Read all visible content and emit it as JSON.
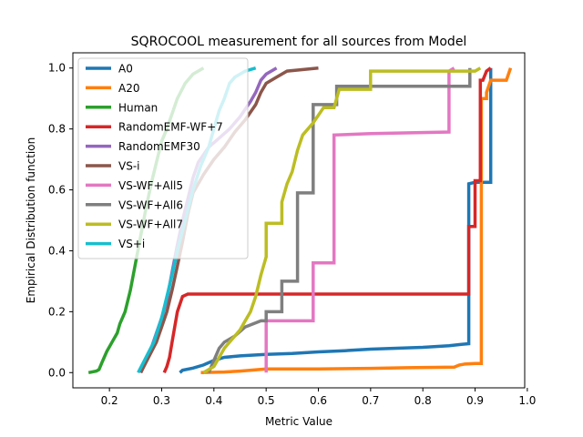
{
  "chart_data": {
    "type": "line",
    "title": "SQROCOOL measurement for all sources from Model",
    "xlabel": "Metric Value",
    "ylabel": "Empirical Distribution function",
    "xlim": [
      0.13,
      0.995
    ],
    "ylim": [
      -0.05,
      1.05
    ],
    "xticks": [
      "0.2",
      "0.3",
      "0.4",
      "0.5",
      "0.6",
      "0.7",
      "0.8",
      "0.9",
      "1.0"
    ],
    "yticks": [
      "0.0",
      "0.2",
      "0.4",
      "0.6",
      "0.8",
      "1.0"
    ],
    "grid": false,
    "legend_position": "upper-left",
    "series": [
      {
        "name": "A0",
        "color": "#1f77b4",
        "alpha": 1.0,
        "points": [
          [
            0.335,
            0.0
          ],
          [
            0.34,
            0.008
          ],
          [
            0.36,
            0.015
          ],
          [
            0.38,
            0.025
          ],
          [
            0.4,
            0.04
          ],
          [
            0.42,
            0.05
          ],
          [
            0.45,
            0.055
          ],
          [
            0.5,
            0.06
          ],
          [
            0.55,
            0.063
          ],
          [
            0.6,
            0.068
          ],
          [
            0.65,
            0.072
          ],
          [
            0.7,
            0.077
          ],
          [
            0.75,
            0.08
          ],
          [
            0.8,
            0.083
          ],
          [
            0.85,
            0.088
          ],
          [
            0.87,
            0.092
          ],
          [
            0.888,
            0.095
          ],
          [
            0.888,
            0.62
          ],
          [
            0.9,
            0.625
          ],
          [
            0.93,
            0.625
          ],
          [
            0.93,
            1.0
          ]
        ]
      },
      {
        "name": "A20",
        "color": "#ff7f0e",
        "alpha": 1.0,
        "points": [
          [
            0.375,
            0.0
          ],
          [
            0.42,
            0.002
          ],
          [
            0.45,
            0.005
          ],
          [
            0.5,
            0.012
          ],
          [
            0.6,
            0.012
          ],
          [
            0.7,
            0.014
          ],
          [
            0.77,
            0.016
          ],
          [
            0.86,
            0.018
          ],
          [
            0.87,
            0.025
          ],
          [
            0.88,
            0.028
          ],
          [
            0.9,
            0.03
          ],
          [
            0.912,
            0.03
          ],
          [
            0.912,
            0.9
          ],
          [
            0.922,
            0.9
          ],
          [
            0.922,
            0.92
          ],
          [
            0.93,
            0.96
          ],
          [
            0.96,
            0.96
          ],
          [
            0.968,
            1.0
          ]
        ]
      },
      {
        "name": "Human",
        "color": "#2ca02c",
        "alpha": 1.0,
        "points": [
          [
            0.16,
            0.0
          ],
          [
            0.175,
            0.005
          ],
          [
            0.18,
            0.01
          ],
          [
            0.185,
            0.03
          ],
          [
            0.19,
            0.05
          ],
          [
            0.195,
            0.07
          ],
          [
            0.205,
            0.1
          ],
          [
            0.215,
            0.13
          ],
          [
            0.22,
            0.16
          ],
          [
            0.23,
            0.2
          ],
          [
            0.24,
            0.27
          ],
          [
            0.25,
            0.36
          ],
          [
            0.26,
            0.45
          ],
          [
            0.27,
            0.54
          ],
          [
            0.28,
            0.62
          ],
          [
            0.29,
            0.69
          ],
          [
            0.3,
            0.76
          ],
          [
            0.31,
            0.8
          ],
          [
            0.32,
            0.85
          ],
          [
            0.33,
            0.9
          ],
          [
            0.345,
            0.95
          ],
          [
            0.36,
            0.98
          ],
          [
            0.38,
            1.0
          ]
        ]
      },
      {
        "name": "RandomEMF-WF+7",
        "color": "#d62728",
        "alpha": 1.0,
        "points": [
          [
            0.305,
            0.0
          ],
          [
            0.31,
            0.02
          ],
          [
            0.315,
            0.05
          ],
          [
            0.32,
            0.1
          ],
          [
            0.325,
            0.15
          ],
          [
            0.33,
            0.2
          ],
          [
            0.34,
            0.25
          ],
          [
            0.35,
            0.258
          ],
          [
            0.5,
            0.258
          ],
          [
            0.7,
            0.258
          ],
          [
            0.888,
            0.258
          ],
          [
            0.888,
            0.48
          ],
          [
            0.9,
            0.48
          ],
          [
            0.9,
            0.63
          ],
          [
            0.91,
            0.63
          ],
          [
            0.91,
            0.96
          ],
          [
            0.915,
            0.96
          ],
          [
            0.922,
            0.99
          ],
          [
            0.93,
            1.0
          ]
        ]
      },
      {
        "name": "RandomEMF30",
        "color": "#9467bd",
        "alpha": 1.0,
        "points": [
          [
            0.26,
            0.0
          ],
          [
            0.27,
            0.04
          ],
          [
            0.28,
            0.08
          ],
          [
            0.29,
            0.13
          ],
          [
            0.3,
            0.18
          ],
          [
            0.31,
            0.24
          ],
          [
            0.32,
            0.33
          ],
          [
            0.33,
            0.42
          ],
          [
            0.34,
            0.5
          ],
          [
            0.35,
            0.57
          ],
          [
            0.36,
            0.64
          ],
          [
            0.37,
            0.69
          ],
          [
            0.39,
            0.74
          ],
          [
            0.41,
            0.77
          ],
          [
            0.43,
            0.8
          ],
          [
            0.45,
            0.84
          ],
          [
            0.47,
            0.89
          ],
          [
            0.48,
            0.92
          ],
          [
            0.49,
            0.96
          ],
          [
            0.5,
            0.98
          ],
          [
            0.52,
            1.0
          ]
        ]
      },
      {
        "name": "VS-i",
        "color": "#8c564b",
        "alpha": 1.0,
        "points": [
          [
            0.26,
            0.0
          ],
          [
            0.275,
            0.05
          ],
          [
            0.29,
            0.1
          ],
          [
            0.3,
            0.15
          ],
          [
            0.31,
            0.2
          ],
          [
            0.32,
            0.27
          ],
          [
            0.33,
            0.35
          ],
          [
            0.34,
            0.43
          ],
          [
            0.35,
            0.52
          ],
          [
            0.36,
            0.59
          ],
          [
            0.38,
            0.65
          ],
          [
            0.4,
            0.7
          ],
          [
            0.42,
            0.74
          ],
          [
            0.44,
            0.79
          ],
          [
            0.46,
            0.83
          ],
          [
            0.48,
            0.88
          ],
          [
            0.49,
            0.92
          ],
          [
            0.5,
            0.95
          ],
          [
            0.52,
            0.97
          ],
          [
            0.54,
            0.99
          ],
          [
            0.6,
            1.0
          ]
        ]
      },
      {
        "name": "VS-WF+All5",
        "color": "#e377c2",
        "alpha": 1.0,
        "points": [
          [
            0.5,
            0.0
          ],
          [
            0.5,
            0.17
          ],
          [
            0.59,
            0.17
          ],
          [
            0.59,
            0.36
          ],
          [
            0.63,
            0.36
          ],
          [
            0.63,
            0.78
          ],
          [
            0.7,
            0.785
          ],
          [
            0.85,
            0.79
          ],
          [
            0.85,
            0.99
          ],
          [
            0.86,
            1.0
          ]
        ]
      },
      {
        "name": "VS-WF+All6",
        "color": "#7f7f7f",
        "alpha": 1.0,
        "points": [
          [
            0.39,
            0.0
          ],
          [
            0.4,
            0.04
          ],
          [
            0.41,
            0.08
          ],
          [
            0.42,
            0.1
          ],
          [
            0.44,
            0.12
          ],
          [
            0.46,
            0.15
          ],
          [
            0.49,
            0.17
          ],
          [
            0.5,
            0.17
          ],
          [
            0.5,
            0.2
          ],
          [
            0.53,
            0.2
          ],
          [
            0.53,
            0.3
          ],
          [
            0.56,
            0.3
          ],
          [
            0.56,
            0.59
          ],
          [
            0.59,
            0.59
          ],
          [
            0.59,
            0.88
          ],
          [
            0.635,
            0.88
          ],
          [
            0.635,
            0.94
          ],
          [
            0.89,
            0.94
          ],
          [
            0.89,
            1.0
          ]
        ]
      },
      {
        "name": "VS-WF+All7",
        "color": "#bcbd22",
        "alpha": 1.0,
        "points": [
          [
            0.38,
            0.0
          ],
          [
            0.4,
            0.02
          ],
          [
            0.41,
            0.05
          ],
          [
            0.42,
            0.08
          ],
          [
            0.43,
            0.1
          ],
          [
            0.44,
            0.12
          ],
          [
            0.45,
            0.14
          ],
          [
            0.46,
            0.17
          ],
          [
            0.47,
            0.2
          ],
          [
            0.48,
            0.25
          ],
          [
            0.49,
            0.32
          ],
          [
            0.5,
            0.38
          ],
          [
            0.5,
            0.49
          ],
          [
            0.53,
            0.49
          ],
          [
            0.53,
            0.56
          ],
          [
            0.54,
            0.62
          ],
          [
            0.55,
            0.66
          ],
          [
            0.56,
            0.73
          ],
          [
            0.57,
            0.78
          ],
          [
            0.59,
            0.82
          ],
          [
            0.61,
            0.87
          ],
          [
            0.63,
            0.87
          ],
          [
            0.64,
            0.93
          ],
          [
            0.7,
            0.93
          ],
          [
            0.7,
            0.99
          ],
          [
            0.9,
            0.99
          ],
          [
            0.91,
            1.0
          ]
        ]
      },
      {
        "name": "VS+i",
        "color": "#17becf",
        "alpha": 1.0,
        "points": [
          [
            0.255,
            0.0
          ],
          [
            0.27,
            0.05
          ],
          [
            0.285,
            0.1
          ],
          [
            0.3,
            0.18
          ],
          [
            0.31,
            0.25
          ],
          [
            0.32,
            0.32
          ],
          [
            0.33,
            0.4
          ],
          [
            0.345,
            0.5
          ],
          [
            0.36,
            0.6
          ],
          [
            0.375,
            0.68
          ],
          [
            0.39,
            0.74
          ],
          [
            0.4,
            0.8
          ],
          [
            0.41,
            0.86
          ],
          [
            0.42,
            0.9
          ],
          [
            0.43,
            0.95
          ],
          [
            0.44,
            0.97
          ],
          [
            0.46,
            0.99
          ],
          [
            0.48,
            1.0
          ]
        ]
      }
    ]
  }
}
